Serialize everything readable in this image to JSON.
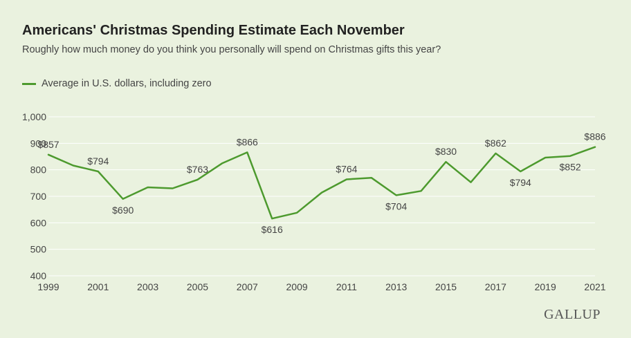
{
  "title": "Americans' Christmas Spending Estimate Each November",
  "subtitle": "Roughly how much money do you think you personally will spend on Christmas gifts this year?",
  "brand": "GALLUP",
  "colors": {
    "line": "#4d9a2e",
    "background": "#eaf2df",
    "grid": "#ffffff"
  },
  "chart_data": {
    "type": "line",
    "x": [
      1999,
      2000,
      2001,
      2002,
      2003,
      2004,
      2005,
      2006,
      2007,
      2008,
      2009,
      2010,
      2011,
      2012,
      2013,
      2014,
      2015,
      2016,
      2017,
      2018,
      2019,
      2020,
      2021
    ],
    "series": [
      {
        "name": "Average in U.S. dollars, including zero",
        "values": [
          857,
          816,
          794,
          690,
          734,
          730,
          763,
          825,
          866,
          616,
          638,
          714,
          764,
          770,
          704,
          720,
          830,
          753,
          862,
          794,
          846,
          852,
          886
        ]
      }
    ],
    "point_labels": [
      {
        "x": 1999,
        "text": "$857",
        "pos": "above"
      },
      {
        "x": 2001,
        "text": "$794",
        "pos": "above"
      },
      {
        "x": 2002,
        "text": "$690",
        "pos": "below"
      },
      {
        "x": 2005,
        "text": "$763",
        "pos": "above"
      },
      {
        "x": 2007,
        "text": "$866",
        "pos": "above"
      },
      {
        "x": 2008,
        "text": "$616",
        "pos": "below"
      },
      {
        "x": 2011,
        "text": "$764",
        "pos": "above"
      },
      {
        "x": 2013,
        "text": "$704",
        "pos": "below"
      },
      {
        "x": 2015,
        "text": "$830",
        "pos": "above"
      },
      {
        "x": 2017,
        "text": "$862",
        "pos": "above"
      },
      {
        "x": 2018,
        "text": "$794",
        "pos": "below"
      },
      {
        "x": 2020,
        "text": "$852",
        "pos": "below"
      },
      {
        "x": 2021,
        "text": "$886",
        "pos": "above"
      }
    ],
    "y_ticks": [
      "400",
      "500",
      "600",
      "700",
      "800",
      "900",
      "1,000"
    ],
    "y_tick_values": [
      400,
      500,
      600,
      700,
      800,
      900,
      1000
    ],
    "x_ticks": [
      "1999",
      "2001",
      "2003",
      "2005",
      "2007",
      "2009",
      "2011",
      "2013",
      "2015",
      "2017",
      "2019",
      "2021"
    ],
    "x_tick_values": [
      1999,
      2001,
      2003,
      2005,
      2007,
      2009,
      2011,
      2013,
      2015,
      2017,
      2019,
      2021
    ],
    "ylim": [
      400,
      1000
    ],
    "xlim": [
      1999,
      2021
    ],
    "grid": true,
    "legend": "top-left"
  }
}
